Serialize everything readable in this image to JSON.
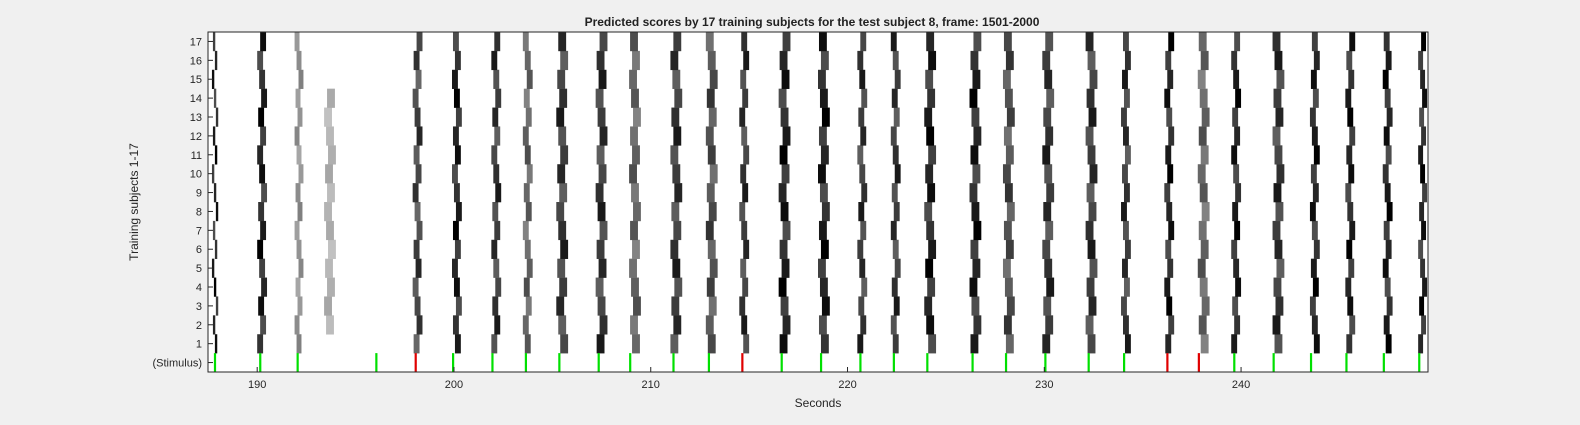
{
  "chart_data": {
    "type": "heatmap",
    "title": "Predicted scores by 17 training subjects for the test subject 8, frame: 1501-2000",
    "xlabel": "Seconds",
    "ylabel": "Training subjects 1-17",
    "xlim": [
      187.5,
      249.5
    ],
    "x_ticks": [
      190,
      200,
      210,
      220,
      230,
      240
    ],
    "x_tick_labels": [
      "190",
      "200",
      "210",
      "220",
      "230",
      "240"
    ],
    "row_labels": [
      "(Stimulus)",
      "1",
      "2",
      "3",
      "4",
      "5",
      "6",
      "7",
      "8",
      "9",
      "10",
      "11",
      "12",
      "13",
      "14",
      "15",
      "16",
      "17"
    ],
    "grid": false,
    "colors": {
      "high_score": "#000000",
      "low_score": "#ffffff",
      "stimulus_green": "#00e000",
      "stimulus_red": "#e00000"
    },
    "stimulus_events": [
      {
        "t": 187.8,
        "color": "green"
      },
      {
        "t": 190.1,
        "color": "green"
      },
      {
        "t": 192.0,
        "color": "green"
      },
      {
        "t": 196.0,
        "color": "green"
      },
      {
        "t": 198.0,
        "color": "red"
      },
      {
        "t": 199.9,
        "color": "green"
      },
      {
        "t": 201.9,
        "color": "green"
      },
      {
        "t": 203.6,
        "color": "green"
      },
      {
        "t": 205.3,
        "color": "green"
      },
      {
        "t": 207.3,
        "color": "green"
      },
      {
        "t": 208.9,
        "color": "green"
      },
      {
        "t": 211.1,
        "color": "green"
      },
      {
        "t": 212.9,
        "color": "green"
      },
      {
        "t": 214.6,
        "color": "red"
      },
      {
        "t": 216.6,
        "color": "green"
      },
      {
        "t": 218.6,
        "color": "green"
      },
      {
        "t": 220.6,
        "color": "green"
      },
      {
        "t": 222.3,
        "color": "green"
      },
      {
        "t": 224.0,
        "color": "green"
      },
      {
        "t": 226.3,
        "color": "green"
      },
      {
        "t": 228.0,
        "color": "green"
      },
      {
        "t": 230.0,
        "color": "green"
      },
      {
        "t": 232.2,
        "color": "green"
      },
      {
        "t": 234.0,
        "color": "green"
      },
      {
        "t": 236.2,
        "color": "red"
      },
      {
        "t": 237.8,
        "color": "red"
      },
      {
        "t": 239.6,
        "color": "green"
      },
      {
        "t": 241.6,
        "color": "green"
      },
      {
        "t": 243.5,
        "color": "green"
      },
      {
        "t": 245.3,
        "color": "green"
      },
      {
        "t": 247.2,
        "color": "green"
      },
      {
        "t": 249.0,
        "color": "green"
      }
    ],
    "response_streaks": [
      {
        "t": 187.8,
        "dt": 0.12,
        "rows": [
          1,
          17
        ],
        "intensity": 1.0
      },
      {
        "t": 190.1,
        "dt": 0.3,
        "rows": [
          1,
          17
        ],
        "intensity": 1.0
      },
      {
        "t": 192.0,
        "dt": 0.25,
        "rows": [
          1,
          17
        ],
        "intensity": 0.5
      },
      {
        "t": 193.5,
        "dt": 0.4,
        "rows": [
          2,
          14
        ],
        "intensity": 0.35
      },
      {
        "t": 198.0,
        "dt": 0.3,
        "rows": [
          1,
          17
        ],
        "intensity": 0.85
      },
      {
        "t": 200.0,
        "dt": 0.3,
        "rows": [
          1,
          17
        ],
        "intensity": 1.0
      },
      {
        "t": 202.0,
        "dt": 0.3,
        "rows": [
          1,
          17
        ],
        "intensity": 0.9
      },
      {
        "t": 203.6,
        "dt": 0.3,
        "rows": [
          1,
          17
        ],
        "intensity": 0.7
      },
      {
        "t": 205.3,
        "dt": 0.4,
        "rows": [
          1,
          17
        ],
        "intensity": 0.9
      },
      {
        "t": 207.3,
        "dt": 0.4,
        "rows": [
          1,
          17
        ],
        "intensity": 0.9
      },
      {
        "t": 209.0,
        "dt": 0.4,
        "rows": [
          1,
          17
        ],
        "intensity": 0.7
      },
      {
        "t": 211.1,
        "dt": 0.4,
        "rows": [
          1,
          17
        ],
        "intensity": 0.9
      },
      {
        "t": 212.9,
        "dt": 0.4,
        "rows": [
          1,
          17
        ],
        "intensity": 0.8
      },
      {
        "t": 214.6,
        "dt": 0.3,
        "rows": [
          1,
          17
        ],
        "intensity": 0.9
      },
      {
        "t": 216.6,
        "dt": 0.4,
        "rows": [
          1,
          17
        ],
        "intensity": 1.0
      },
      {
        "t": 218.6,
        "dt": 0.4,
        "rows": [
          1,
          17
        ],
        "intensity": 1.0
      },
      {
        "t": 220.6,
        "dt": 0.3,
        "rows": [
          1,
          17
        ],
        "intensity": 0.9
      },
      {
        "t": 222.3,
        "dt": 0.3,
        "rows": [
          1,
          17
        ],
        "intensity": 0.9
      },
      {
        "t": 224.0,
        "dt": 0.4,
        "rows": [
          1,
          17
        ],
        "intensity": 1.0
      },
      {
        "t": 226.3,
        "dt": 0.4,
        "rows": [
          1,
          17
        ],
        "intensity": 1.0
      },
      {
        "t": 228.0,
        "dt": 0.4,
        "rows": [
          1,
          17
        ],
        "intensity": 0.8
      },
      {
        "t": 230.0,
        "dt": 0.4,
        "rows": [
          1,
          17
        ],
        "intensity": 0.9
      },
      {
        "t": 232.2,
        "dt": 0.4,
        "rows": [
          1,
          17
        ],
        "intensity": 0.9
      },
      {
        "t": 234.0,
        "dt": 0.3,
        "rows": [
          1,
          17
        ],
        "intensity": 0.9
      },
      {
        "t": 236.2,
        "dt": 0.3,
        "rows": [
          1,
          17
        ],
        "intensity": 1.0
      },
      {
        "t": 237.9,
        "dt": 0.4,
        "rows": [
          1,
          17
        ],
        "intensity": 0.7
      },
      {
        "t": 239.6,
        "dt": 0.3,
        "rows": [
          1,
          17
        ],
        "intensity": 1.0
      },
      {
        "t": 241.7,
        "dt": 0.4,
        "rows": [
          1,
          17
        ],
        "intensity": 0.9
      },
      {
        "t": 243.6,
        "dt": 0.3,
        "rows": [
          1,
          17
        ],
        "intensity": 1.0
      },
      {
        "t": 245.4,
        "dt": 0.3,
        "rows": [
          1,
          17
        ],
        "intensity": 1.0
      },
      {
        "t": 247.3,
        "dt": 0.3,
        "rows": [
          1,
          17
        ],
        "intensity": 1.0
      },
      {
        "t": 249.1,
        "dt": 0.25,
        "rows": [
          1,
          17
        ],
        "intensity": 1.0
      }
    ]
  }
}
